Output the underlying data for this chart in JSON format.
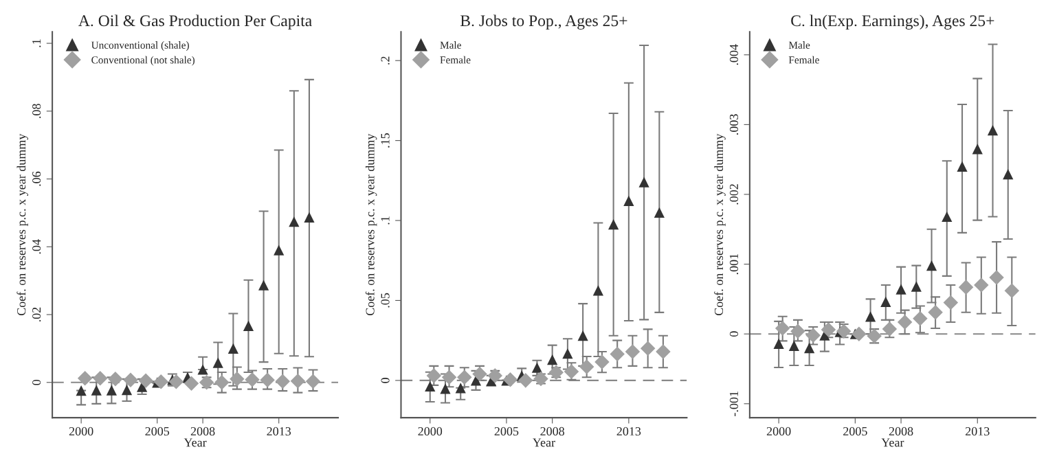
{
  "chart_data": [
    {
      "type": "scatter",
      "title": "A. Oil & Gas Production Per Capita",
      "xlabel": "Year",
      "ylabel": "Coef. on reserves p.c. x year dummy",
      "xlim": [
        1998.1,
        2016.9
      ],
      "ylim": [
        -0.0104,
        0.1034
      ],
      "xticks": [
        2000,
        2005,
        2008,
        2013
      ],
      "yticks": [
        0,
        {
          "value": 0.02,
          "label": ".02"
        },
        {
          "value": 0.04,
          "label": ".04"
        },
        {
          "value": 0.06,
          "label": ".06"
        },
        {
          "value": 0.08,
          "label": ".08"
        },
        {
          "value": 0.1,
          "label": ".1"
        }
      ],
      "grid": false,
      "legend": "top left",
      "ref_lines": [
        {
          "axis": "y",
          "value": 0,
          "line_style": "dashed",
          "color": "#888888"
        }
      ],
      "series": [
        {
          "name": "Unconventional (shale)",
          "color": "#333333",
          "marker": "triangle",
          "x": [
            2000,
            2001,
            2002,
            2003,
            2004,
            2005,
            2006,
            2007,
            2008,
            2009,
            2010,
            2011,
            2012,
            2013,
            2014,
            2015
          ],
          "values": [
            -0.0024,
            -0.0023,
            -0.0023,
            -0.0022,
            -0.0013,
            0,
            0.0008,
            0.0015,
            0.0038,
            0.0058,
            0.01,
            0.0167,
            0.0287,
            0.039,
            0.0474,
            0.0487
          ],
          "errors": [
            [
              -0.0066,
              -0.0024
            ],
            [
              -0.0063,
              0.0015
            ],
            [
              -0.0062,
              0.0015
            ],
            [
              -0.0055,
              0.001
            ],
            [
              -0.0035,
              0.001
            ],
            [
              -0.0003,
              0.0003
            ],
            [
              -0.001,
              0.0025
            ],
            [
              0,
              0.003
            ],
            [
              0.0038,
              0.0075
            ],
            [
              -0.0005,
              0.0118
            ],
            [
              -0.001,
              0.0203
            ],
            [
              0.003,
              0.0302
            ],
            [
              0.006,
              0.0505
            ],
            [
              0.0085,
              0.0685
            ],
            [
              0.0078,
              0.086
            ],
            [
              0.0076,
              0.0893
            ]
          ]
        },
        {
          "name": "Conventional (not shale)",
          "color": "#a0a0a0",
          "marker": "diamond",
          "x": [
            2000.25,
            2001.25,
            2002.25,
            2003.25,
            2004.25,
            2005.25,
            2006.25,
            2007.25,
            2008.25,
            2009.25,
            2010.25,
            2011.25,
            2012.25,
            2013.25,
            2014.25,
            2015.25
          ],
          "values": [
            0.0012,
            0.0012,
            0.001,
            0.0007,
            0.0005,
            0.0002,
            0.0002,
            -0.0003,
            0,
            0,
            0.001,
            0.0008,
            0.0007,
            0.0003,
            0.0004,
            0.0003
          ],
          "errors": [
            null,
            null,
            null,
            null,
            null,
            [
              0,
              0.0004
            ],
            null,
            null,
            [
              -0.0015,
              0.0015
            ],
            [
              -0.003,
              0.003
            ],
            [
              -0.002,
              0.0045
            ],
            [
              -0.002,
              0.0035
            ],
            [
              -0.002,
              0.004
            ],
            [
              -0.0025,
              0.004
            ],
            [
              -0.003,
              0.0043
            ],
            [
              -0.0025,
              0.0037
            ]
          ]
        }
      ]
    },
    {
      "type": "scatter",
      "title": "B. Jobs to Pop., Ages 25+",
      "xlabel": "Year",
      "ylabel": "Coef. on reserves p.c. x year dummy",
      "xlim": [
        1998.1,
        2016.8
      ],
      "ylim": [
        -0.0233,
        0.218
      ],
      "xticks": [
        2000,
        2005,
        2008,
        2013
      ],
      "yticks": [
        0,
        {
          "value": 0.05,
          "label": ".05"
        },
        {
          "value": 0.1,
          "label": ".1"
        },
        {
          "value": 0.15,
          "label": ".15"
        },
        {
          "value": 0.2,
          "label": ".2"
        }
      ],
      "grid": false,
      "legend": "top left",
      "ref_lines": [
        {
          "axis": "y",
          "value": 0,
          "line_style": "dashed",
          "color": "#888888"
        }
      ],
      "series": [
        {
          "name": "Male",
          "color": "#333333",
          "marker": "triangle",
          "x": [
            2000,
            2001,
            2002,
            2003,
            2004,
            2005,
            2006,
            2007,
            2008,
            2009,
            2010,
            2011,
            2012,
            2013,
            2014,
            2015
          ],
          "values": [
            -0.0037,
            -0.0052,
            -0.0047,
            0,
            -0.0004,
            0,
            0.003,
            0.008,
            0.013,
            0.0168,
            0.028,
            0.0563,
            0.0976,
            0.1123,
            0.124,
            0.105
          ],
          "errors": [
            [
              -0.0134,
              0.0052
            ],
            [
              -0.014,
              0.004
            ],
            [
              -0.012,
              -0.0047
            ],
            [
              -0.006,
              0.006
            ],
            [
              -0.003,
              0.003
            ],
            [
              0,
              0
            ],
            [
              -0.001,
              0.0075
            ],
            [
              0.003,
              0.0125
            ],
            [
              0.004,
              0.022
            ],
            [
              0.007,
              0.026
            ],
            [
              0.009,
              0.048
            ],
            [
              0.015,
              0.0985
            ],
            [
              0.028,
              0.167
            ],
            [
              0.0373,
              0.186
            ],
            [
              0.038,
              0.2095
            ],
            [
              0.0425,
              0.168
            ]
          ]
        },
        {
          "name": "Female",
          "color": "#a0a0a0",
          "marker": "diamond",
          "x": [
            2000.25,
            2001.25,
            2002.25,
            2003.25,
            2004.25,
            2005.25,
            2006.25,
            2007.25,
            2008.25,
            2009.25,
            2010.25,
            2011.25,
            2012.25,
            2013.25,
            2014.25,
            2015.25
          ],
          "values": [
            0.003,
            0.002,
            0.002,
            0.004,
            0.003,
            0.0005,
            0,
            0.001,
            0.005,
            0.0055,
            0.0085,
            0.0115,
            0.0165,
            0.018,
            0.02,
            0.018
          ],
          "errors": [
            [
              -0.003,
              0.009
            ],
            [
              -0.004,
              0.009
            ],
            [
              -0.004,
              0.008
            ],
            [
              0,
              0.009
            ],
            [
              0,
              0.006
            ],
            null,
            null,
            [
              -0.002,
              0.004
            ],
            [
              0.002,
              0.008
            ],
            [
              0.0005,
              0.011
            ],
            [
              0.002,
              0.015
            ],
            [
              0.005,
              0.018
            ],
            [
              0.008,
              0.025
            ],
            [
              0.009,
              0.028
            ],
            [
              0.008,
              0.032
            ],
            [
              0.008,
              0.028
            ]
          ]
        }
      ]
    },
    {
      "type": "scatter",
      "title": "C. ln(Exp. Earnings), Ages 25+",
      "xlabel": "Year",
      "ylabel": "Coef. on reserves p.c. x year dummy",
      "xlim": [
        1998.1,
        2016.8
      ],
      "ylim": [
        -0.0012,
        0.00433
      ],
      "xticks": [
        2000,
        2005,
        2008,
        2013
      ],
      "yticks": [
        {
          "value": -0.001,
          "label": "-.001"
        },
        0,
        {
          "value": 0.001,
          "label": ".001"
        },
        {
          "value": 0.002,
          "label": ".002"
        },
        {
          "value": 0.003,
          "label": ".003"
        },
        {
          "value": 0.004,
          "label": ".004"
        }
      ],
      "grid": false,
      "legend": "top left",
      "ref_lines": [
        {
          "axis": "y",
          "value": 0,
          "line_style": "dashed",
          "color": "#888888"
        }
      ],
      "series": [
        {
          "name": "Male",
          "color": "#333333",
          "marker": "triangle",
          "x": [
            2000,
            2001,
            2002,
            2003,
            2004,
            2005,
            2006,
            2007,
            2008,
            2009,
            2010,
            2011,
            2012,
            2013,
            2014,
            2015
          ],
          "values": [
            -0.00014,
            -0.00017,
            -0.0002,
            -2e-05,
            3e-05,
            0,
            0.00025,
            0.00046,
            0.00064,
            0.00068,
            0.00098,
            0.00168,
            0.0024,
            0.00265,
            0.00292,
            0.00229
          ],
          "errors": [
            [
              -0.00048,
              0.00018
            ],
            [
              -0.00045,
              0.0001
            ],
            [
              -0.00045,
              5e-05
            ],
            [
              -0.00025,
              0.00017
            ],
            [
              -0.00015,
              0.00017
            ],
            [
              0,
              0
            ],
            [
              0,
              0.0005
            ],
            [
              0.0002,
              0.0007
            ],
            [
              0.0003,
              0.00096
            ],
            [
              0.00037,
              0.00098
            ],
            [
              0.00045,
              0.0015
            ],
            [
              0.00083,
              0.00248
            ],
            [
              0.00145,
              0.00329
            ],
            [
              0.00163,
              0.00366
            ],
            [
              0.00168,
              0.00415
            ],
            [
              0.00136,
              0.0032
            ]
          ]
        },
        {
          "name": "Female",
          "color": "#a0a0a0",
          "marker": "diamond",
          "x": [
            2000.25,
            2001.25,
            2002.25,
            2003.25,
            2004.25,
            2005.25,
            2006.25,
            2007.25,
            2008.25,
            2009.25,
            2010.25,
            2011.25,
            2012.25,
            2013.25,
            2014.25,
            2015.25
          ],
          "values": [
            8e-05,
            4e-05,
            -2e-05,
            6e-05,
            4e-05,
            0,
            -3e-05,
            7e-05,
            0.00017,
            0.00022,
            0.00031,
            0.00045,
            0.00067,
            0.0007,
            0.00081,
            0.00062
          ],
          "errors": [
            [
              -0.0001,
              0.00025
            ],
            [
              -0.0001,
              0.0002
            ],
            [
              -0.00015,
              0.0001
            ],
            [
              -5e-05,
              0.00017
            ],
            [
              -5e-05,
              0.00014
            ],
            [
              0,
              0
            ],
            [
              -0.00013,
              7e-05
            ],
            [
              -5e-05,
              0.0002
            ],
            [
              0,
              0.00034
            ],
            [
              2e-05,
              0.0004
            ],
            [
              8e-05,
              0.00053
            ],
            [
              0.00017,
              0.0007
            ],
            [
              0.00031,
              0.00102
            ],
            [
              0.00029,
              0.0011
            ],
            [
              0.0003,
              0.00132
            ],
            [
              0.00012,
              0.0011
            ]
          ]
        }
      ]
    }
  ]
}
